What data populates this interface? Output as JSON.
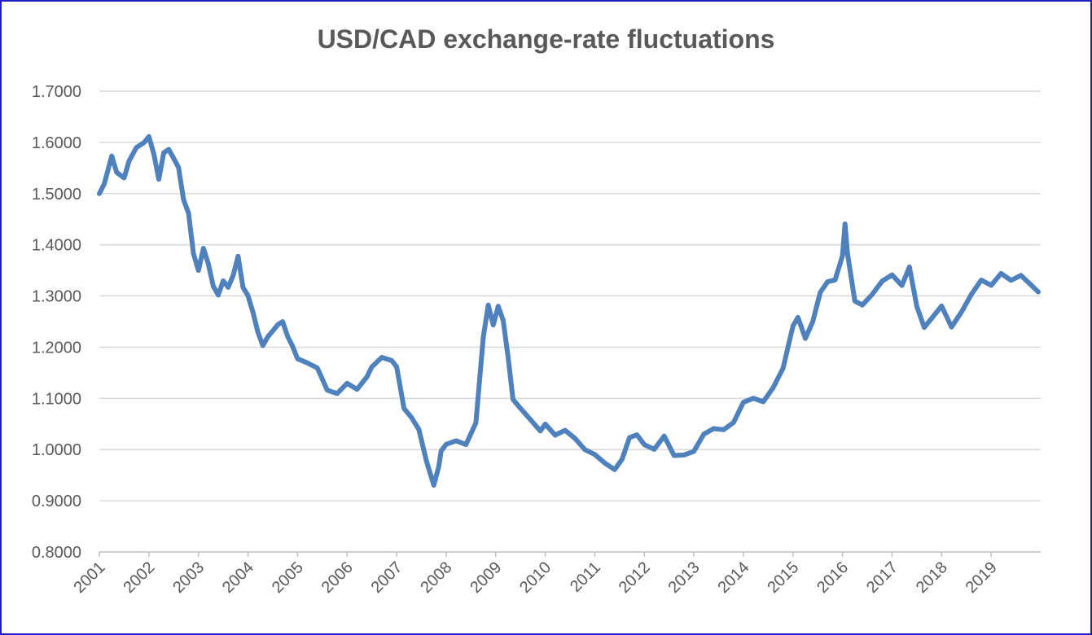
{
  "chart_data": {
    "type": "line",
    "title": "USD/CAD exchange-rate fluctuations",
    "xlabel": "",
    "ylabel": "",
    "ylim": [
      0.8,
      1.7
    ],
    "xlim": [
      2001,
      2020
    ],
    "y_ticks": [
      "0.8000",
      "0.9000",
      "1.0000",
      "1.1000",
      "1.2000",
      "1.3000",
      "1.4000",
      "1.5000",
      "1.6000",
      "1.7000"
    ],
    "x_ticks": [
      "2001",
      "2002",
      "2003",
      "2004",
      "2005",
      "2006",
      "2007",
      "2008",
      "2009",
      "2010",
      "2011",
      "2012",
      "2013",
      "2014",
      "2015",
      "2016",
      "2017",
      "2018",
      "2019"
    ],
    "grid": true,
    "line_color": "#4f81bd",
    "grid_color": "#d9d9d9",
    "frame_color": "#1f1fbf",
    "series": [
      {
        "name": "USD/CAD",
        "x": [
          2001.0,
          2001.1,
          2001.25,
          2001.35,
          2001.5,
          2001.6,
          2001.75,
          2001.9,
          2002.0,
          2002.1,
          2002.2,
          2002.3,
          2002.4,
          2002.5,
          2002.6,
          2002.7,
          2002.8,
          2002.9,
          2003.0,
          2003.1,
          2003.2,
          2003.3,
          2003.4,
          2003.5,
          2003.6,
          2003.7,
          2003.8,
          2003.9,
          2004.0,
          2004.1,
          2004.2,
          2004.3,
          2004.4,
          2004.5,
          2004.6,
          2004.7,
          2004.8,
          2004.9,
          2005.0,
          2005.2,
          2005.4,
          2005.6,
          2005.8,
          2006.0,
          2006.2,
          2006.4,
          2006.5,
          2006.7,
          2006.9,
          2007.0,
          2007.15,
          2007.3,
          2007.45,
          2007.6,
          2007.75,
          2007.85,
          2007.9,
          2008.0,
          2008.2,
          2008.4,
          2008.6,
          2008.75,
          2008.85,
          2008.95,
          2009.05,
          2009.15,
          2009.25,
          2009.35,
          2009.5,
          2009.7,
          2009.9,
          2010.0,
          2010.2,
          2010.4,
          2010.6,
          2010.8,
          2011.0,
          2011.2,
          2011.4,
          2011.55,
          2011.7,
          2011.85,
          2012.0,
          2012.2,
          2012.4,
          2012.6,
          2012.8,
          2013.0,
          2013.2,
          2013.4,
          2013.6,
          2013.8,
          2014.0,
          2014.2,
          2014.4,
          2014.6,
          2014.8,
          2015.0,
          2015.1,
          2015.25,
          2015.4,
          2015.55,
          2015.7,
          2015.85,
          2016.0,
          2016.05,
          2016.1,
          2016.25,
          2016.4,
          2016.6,
          2016.8,
          2017.0,
          2017.2,
          2017.35,
          2017.5,
          2017.65,
          2017.8,
          2018.0,
          2018.2,
          2018.4,
          2018.6,
          2018.8,
          2019.0,
          2019.2,
          2019.4,
          2019.6,
          2019.8,
          2019.95
        ],
        "values": [
          1.5,
          1.52,
          1.57,
          1.54,
          1.53,
          1.56,
          1.59,
          1.6,
          1.61,
          1.58,
          1.53,
          1.58,
          1.59,
          1.57,
          1.55,
          1.49,
          1.46,
          1.38,
          1.35,
          1.39,
          1.36,
          1.32,
          1.3,
          1.33,
          1.32,
          1.34,
          1.38,
          1.32,
          1.3,
          1.27,
          1.23,
          1.2,
          1.22,
          1.23,
          1.24,
          1.25,
          1.22,
          1.2,
          1.18,
          1.17,
          1.16,
          1.12,
          1.11,
          1.13,
          1.12,
          1.14,
          1.16,
          1.18,
          1.17,
          1.16,
          1.08,
          1.06,
          1.04,
          0.98,
          0.93,
          0.97,
          1.0,
          1.01,
          1.02,
          1.01,
          1.05,
          1.22,
          1.28,
          1.24,
          1.28,
          1.25,
          1.18,
          1.1,
          1.08,
          1.06,
          1.04,
          1.05,
          1.03,
          1.04,
          1.02,
          1.0,
          0.99,
          0.97,
          0.96,
          0.98,
          1.02,
          1.03,
          1.01,
          1.0,
          1.03,
          0.99,
          0.99,
          1.0,
          1.03,
          1.04,
          1.04,
          1.05,
          1.09,
          1.1,
          1.09,
          1.12,
          1.16,
          1.24,
          1.26,
          1.22,
          1.25,
          1.31,
          1.33,
          1.33,
          1.38,
          1.44,
          1.38,
          1.29,
          1.28,
          1.3,
          1.33,
          1.34,
          1.32,
          1.36,
          1.28,
          1.24,
          1.26,
          1.28,
          1.24,
          1.27,
          1.3,
          1.33,
          1.32,
          1.34,
          1.33,
          1.34,
          1.32,
          1.31
        ]
      }
    ]
  }
}
